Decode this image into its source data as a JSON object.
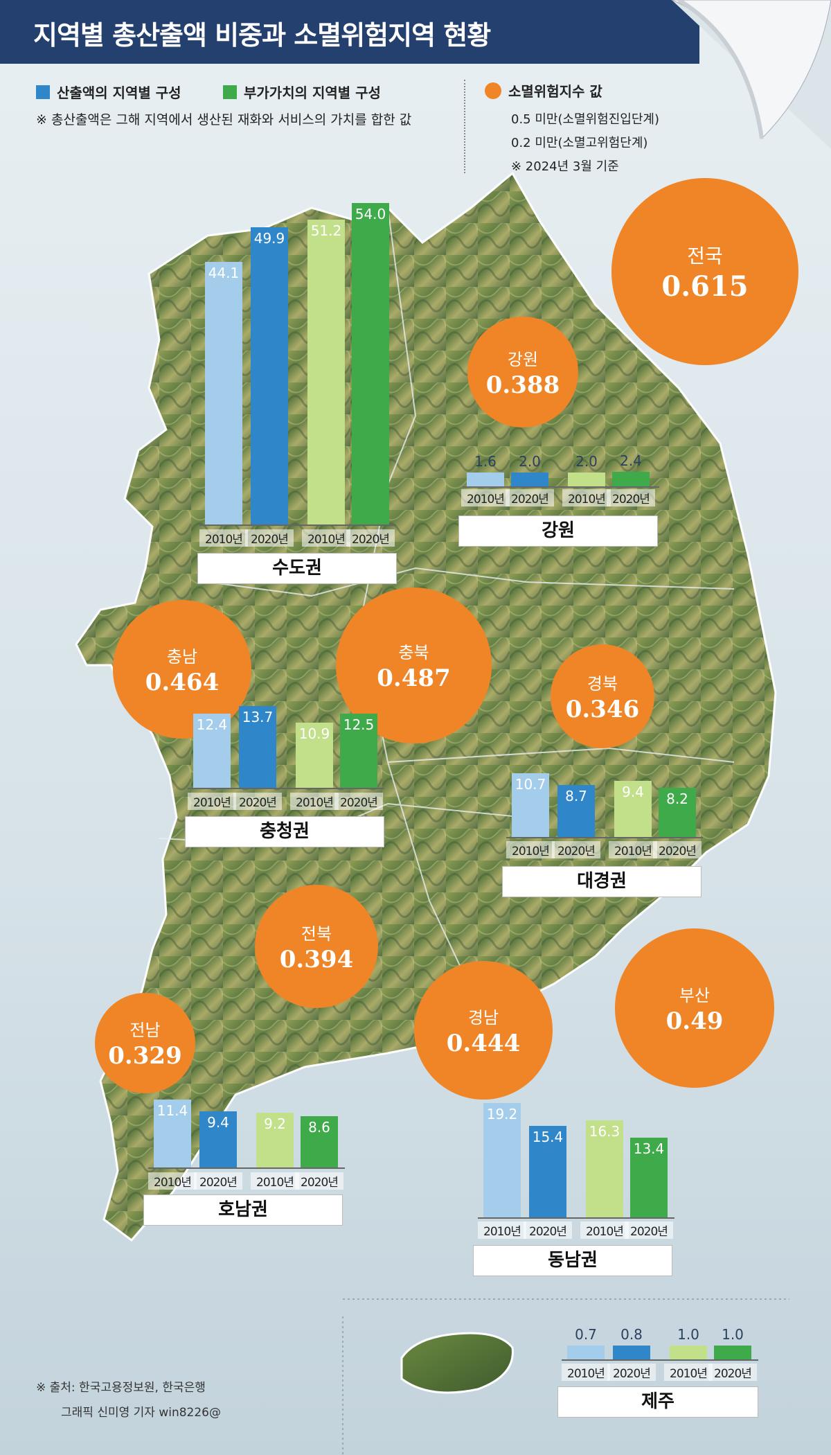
{
  "title": "지역별 총산출액 비중과 소멸위험지역 현황",
  "legend": {
    "output": "산출액의 지역별 구성",
    "value_added": "부가가치의 지역별 구성",
    "note": "※ 총산출액은 그해 지역에서 생산된 재화와 서비스의 가치를 합한 값",
    "risk_title": "소멸위험지수 값",
    "risk_line1": "0.5 미만(소멸위험진입단계)",
    "risk_line2": "0.2 미만(소멸고위험단계)",
    "risk_line3": "※ 2024년 3월 기준"
  },
  "colors": {
    "output_2010": "#a4cdeb",
    "output_2020": "#2f86c8",
    "va_2010": "#c2df8a",
    "va_2020": "#3eaa4a",
    "risk": "#ef8526",
    "title_bg": "#24406f"
  },
  "chart_data": {
    "type": "bar",
    "series": [
      {
        "name": "산출액의 지역별 구성",
        "years": [
          "2010년",
          "2020년"
        ]
      },
      {
        "name": "부가가치의 지역별 구성",
        "years": [
          "2010년",
          "2020년"
        ]
      }
    ],
    "years": [
      "2010년",
      "2020년",
      "2010년",
      "2020년"
    ],
    "regions": [
      {
        "name": "수도권",
        "values": [
          44.1,
          49.9,
          51.2,
          54.0
        ],
        "labels": [
          "44.1",
          "49.9",
          "51.2",
          "54.0"
        ]
      },
      {
        "name": "강원",
        "values": [
          1.6,
          2.0,
          2.0,
          2.4
        ],
        "labels": [
          "1.6",
          "2.0",
          "2.0",
          "2.4"
        ]
      },
      {
        "name": "충청권",
        "values": [
          12.4,
          13.7,
          10.9,
          12.5
        ],
        "labels": [
          "12.4",
          "13.7",
          "10.9",
          "12.5"
        ]
      },
      {
        "name": "대경권",
        "values": [
          10.7,
          8.7,
          9.4,
          8.2
        ],
        "labels": [
          "10.7",
          "8.7",
          "9.4",
          "8.2"
        ]
      },
      {
        "name": "호남권",
        "values": [
          11.4,
          9.4,
          9.2,
          8.6
        ],
        "labels": [
          "11.4",
          "9.4",
          "9.2",
          "8.6"
        ]
      },
      {
        "name": "동남권",
        "values": [
          19.2,
          15.4,
          16.3,
          13.4
        ],
        "labels": [
          "19.2",
          "15.4",
          "16.3",
          "13.4"
        ]
      },
      {
        "name": "제주",
        "values": [
          0.7,
          0.8,
          1.0,
          1.0
        ],
        "labels": [
          "0.7",
          "0.8",
          "1.0",
          "1.0"
        ]
      }
    ],
    "risk_index": [
      {
        "name": "전국",
        "value": "0.615"
      },
      {
        "name": "강원",
        "value": "0.388"
      },
      {
        "name": "충남",
        "value": "0.464"
      },
      {
        "name": "충북",
        "value": "0.487"
      },
      {
        "name": "경북",
        "value": "0.346"
      },
      {
        "name": "전북",
        "value": "0.394"
      },
      {
        "name": "전남",
        "value": "0.329"
      },
      {
        "name": "경남",
        "value": "0.444"
      },
      {
        "name": "부산",
        "value": "0.49"
      }
    ]
  },
  "footer": {
    "source": "※ 출처: 한국고용정보원, 한국은행",
    "credit": "그래픽 신미영 기자 win8226@"
  }
}
